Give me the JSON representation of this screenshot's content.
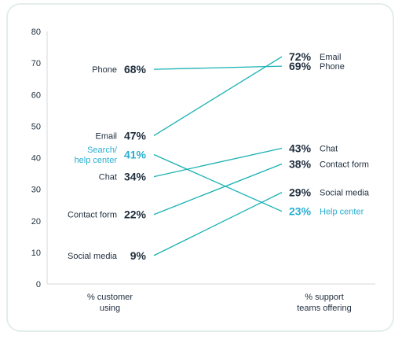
{
  "chart_data": {
    "type": "slope",
    "ylim": [
      0,
      80
    ],
    "yticks": [
      0,
      10,
      20,
      30,
      40,
      50,
      60,
      70,
      80
    ],
    "columns": [
      {
        "label": [
          "%  customer",
          "using"
        ]
      },
      {
        "label": [
          "%  support",
          "teams offering"
        ]
      }
    ],
    "series": [
      {
        "name": "Phone",
        "left_label": [
          "Phone"
        ],
        "right_label": [
          "Phone"
        ],
        "values": [
          68,
          69
        ],
        "highlight": false
      },
      {
        "name": "Email",
        "left_label": [
          "Email"
        ],
        "right_label": [
          "Email"
        ],
        "values": [
          47,
          72
        ],
        "highlight": false
      },
      {
        "name": "Search/help center",
        "left_label": [
          "Search/",
          "help center"
        ],
        "right_label": [
          "Help center"
        ],
        "values": [
          41,
          23
        ],
        "highlight": true
      },
      {
        "name": "Chat",
        "left_label": [
          "Chat"
        ],
        "right_label": [
          "Chat"
        ],
        "values": [
          34,
          43
        ],
        "highlight": false
      },
      {
        "name": "Contact form",
        "left_label": [
          "Contact form"
        ],
        "right_label": [
          "Contact form"
        ],
        "values": [
          22,
          38
        ],
        "highlight": false
      },
      {
        "name": "Social media",
        "left_label": [
          "Social media"
        ],
        "right_label": [
          "Social media"
        ],
        "values": [
          9,
          29
        ],
        "highlight": false
      }
    ]
  },
  "colors": {
    "line": "#1ab1b3",
    "highlight": "#29aed0",
    "text": "#1f2d3d",
    "axis": "#d6d9de",
    "card_border": "#e3eeea"
  }
}
